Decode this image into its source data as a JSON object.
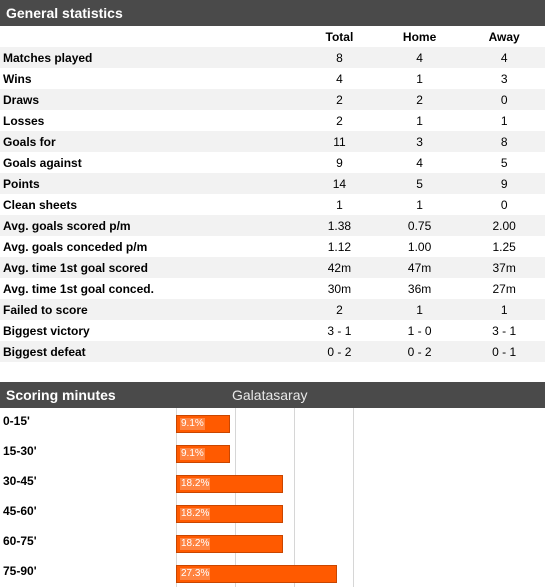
{
  "general": {
    "title": "General statistics",
    "columns": {
      "label": "",
      "total": "Total",
      "home": "Home",
      "away": "Away"
    },
    "rows": [
      {
        "label": "Matches played",
        "total": "8",
        "home": "4",
        "away": "4"
      },
      {
        "label": "Wins",
        "total": "4",
        "home": "1",
        "away": "3"
      },
      {
        "label": "Draws",
        "total": "2",
        "home": "2",
        "away": "0"
      },
      {
        "label": "Losses",
        "total": "2",
        "home": "1",
        "away": "1"
      },
      {
        "label": "Goals for",
        "total": "11",
        "home": "3",
        "away": "8"
      },
      {
        "label": "Goals against",
        "total": "9",
        "home": "4",
        "away": "5"
      },
      {
        "label": "Points",
        "total": "14",
        "home": "5",
        "away": "9"
      },
      {
        "label": "Clean sheets",
        "total": "1",
        "home": "1",
        "away": "0"
      },
      {
        "label": "Avg. goals scored p/m",
        "total": "1.38",
        "home": "0.75",
        "away": "2.00"
      },
      {
        "label": "Avg. goals conceded p/m",
        "total": "1.12",
        "home": "1.00",
        "away": "1.25"
      },
      {
        "label": "Avg. time 1st goal scored",
        "total": "42m",
        "home": "47m",
        "away": "37m"
      },
      {
        "label": "Avg. time 1st goal conced.",
        "total": "30m",
        "home": "36m",
        "away": "27m"
      },
      {
        "label": "Failed to score",
        "total": "2",
        "home": "1",
        "away": "1"
      },
      {
        "label": "Biggest victory",
        "total": "3 - 1",
        "home": "1 - 0",
        "away": "3 - 1"
      },
      {
        "label": "Biggest defeat",
        "total": "0 - 2",
        "home": "0 - 2",
        "away": "0 - 1"
      }
    ]
  },
  "scoring": {
    "title": "Scoring minutes",
    "team": "Galatasaray",
    "bar_color": "#ff5a00",
    "max_percent": 30,
    "rows": [
      {
        "label": "0-15'",
        "percent": 9.1,
        "text": "9.1%"
      },
      {
        "label": "15-30'",
        "percent": 9.1,
        "text": "9.1%"
      },
      {
        "label": "30-45'",
        "percent": 18.2,
        "text": "18.2%"
      },
      {
        "label": "45-60'",
        "percent": 18.2,
        "text": "18.2%"
      },
      {
        "label": "60-75'",
        "percent": 18.2,
        "text": "18.2%"
      },
      {
        "label": "75-90'",
        "percent": 27.3,
        "text": "27.3%"
      }
    ]
  }
}
